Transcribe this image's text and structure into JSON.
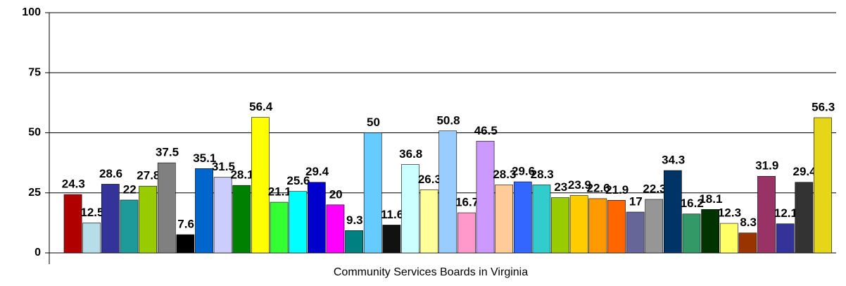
{
  "chart_data": {
    "type": "bar",
    "xlabel": "Community Services Boards in Virginia",
    "values": [
      24.3,
      12.5,
      28.6,
      22,
      27.8,
      37.5,
      7.6,
      35.1,
      31.5,
      28.1,
      56.4,
      21.1,
      25.6,
      29.4,
      20,
      9.3,
      50,
      11.6,
      36.8,
      26.3,
      50.8,
      16.7,
      46.5,
      28.3,
      29.6,
      28.3,
      23,
      23.9,
      22.6,
      21.9,
      17,
      22.3,
      34.3,
      16.2,
      18.1,
      12.3,
      8.3,
      31.9,
      12.1,
      29.4,
      56.3
    ],
    "colors": [
      "#b00000",
      "#b7dde8",
      "#333399",
      "#1f9a9a",
      "#99cc00",
      "#808080",
      "#000000",
      "#0066cc",
      "#ccccff",
      "#008000",
      "#ffff00",
      "#33ff33",
      "#00ffff",
      "#0000cc",
      "#ff00ff",
      "#008080",
      "#66ccff",
      "#111111",
      "#ccffff",
      "#ffff99",
      "#99ccff",
      "#ff99cc",
      "#cc99ff",
      "#ffcc99",
      "#3366ff",
      "#33cccc",
      "#99cc00",
      "#ffcc00",
      "#ff9900",
      "#ff6600",
      "#666699",
      "#969696",
      "#003366",
      "#339966",
      "#003300",
      "#ffff66",
      "#993300",
      "#993366",
      "#333399",
      "#333333",
      "#e6d619"
    ],
    "ylim": [
      0,
      100
    ],
    "yticks": [
      0,
      25,
      50,
      75,
      100
    ],
    "grid": true
  }
}
